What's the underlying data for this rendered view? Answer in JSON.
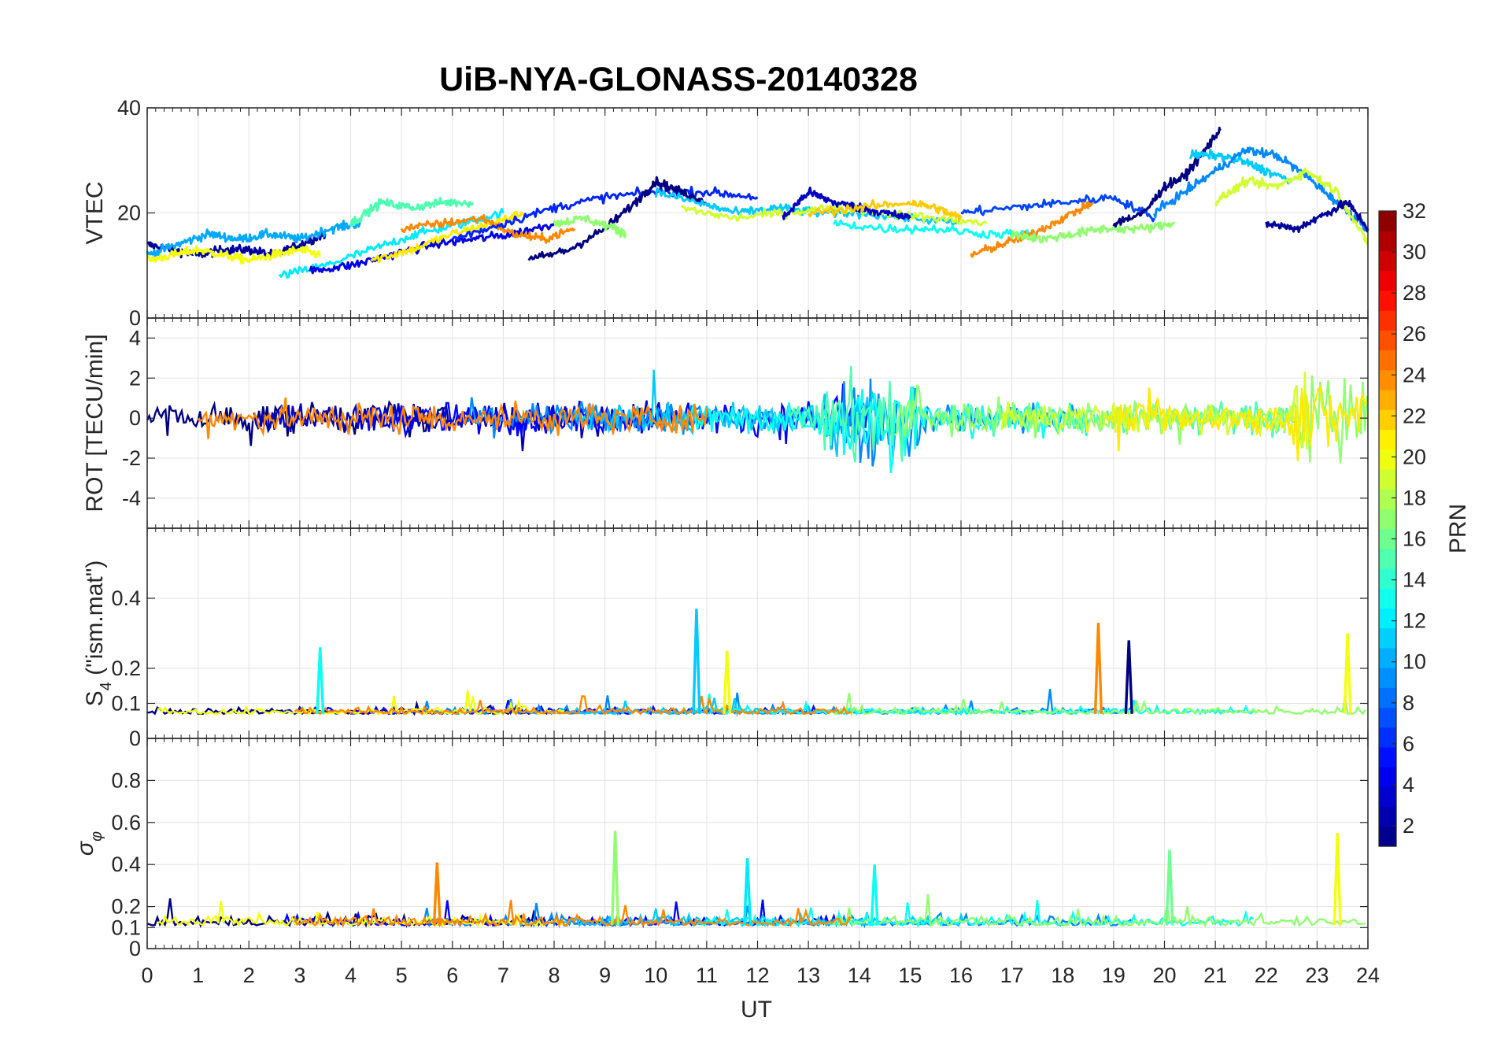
{
  "chart_data": {
    "type": "line",
    "title": "UiB-NYA-GLONASS-20140328",
    "xlabel": "UT",
    "xlim": [
      0,
      24
    ],
    "xticks": [
      "0",
      "1",
      "2",
      "3",
      "4",
      "5",
      "6",
      "7",
      "8",
      "9",
      "10",
      "11",
      "12",
      "13",
      "14",
      "15",
      "16",
      "17",
      "18",
      "19",
      "20",
      "21",
      "22",
      "23",
      "24"
    ],
    "grid": true,
    "colormap": "jet",
    "colorbar": {
      "label": "PRN",
      "range": [
        1,
        32
      ],
      "ticks": [
        "2",
        "4",
        "6",
        "8",
        "10",
        "12",
        "14",
        "16",
        "18",
        "20",
        "22",
        "24",
        "26",
        "28",
        "30",
        "32"
      ]
    },
    "panels": [
      {
        "ylabel": "VTEC",
        "ylim": [
          0,
          40
        ],
        "yticks": [
          "0",
          "20",
          "40"
        ],
        "series": [
          {
            "prn": 2,
            "x": [
              0.0,
              0.5,
              1.0,
              1.5,
              2.0,
              2.5,
              3.0,
              3.5
            ],
            "y": [
              14,
              13,
              12,
              13,
              13,
              12,
              14,
              16
            ]
          },
          {
            "prn": 10,
            "x": [
              0.0,
              0.6,
              1.2,
              1.8,
              2.4,
              3.0,
              3.6,
              4.2
            ],
            "y": [
              12,
              14,
              16,
              15,
              16,
              15,
              17,
              18
            ]
          },
          {
            "prn": 20,
            "x": [
              0.0,
              0.5,
              1.0,
              1.5,
              2.0,
              2.5,
              3.0,
              3.4
            ],
            "y": [
              11,
              12,
              13,
              12,
              11,
              12,
              13,
              12
            ]
          },
          {
            "prn": 12,
            "x": [
              2.6,
              3.5,
              4.4,
              5.3,
              6.2,
              7.0
            ],
            "y": [
              8,
              10,
              13,
              16,
              18,
              20
            ]
          },
          {
            "prn": 4,
            "x": [
              3.2,
              4.0,
              4.8,
              5.6,
              6.4,
              7.2,
              8.0
            ],
            "y": [
              9,
              10,
              12,
              14,
              15,
              16,
              18
            ]
          },
          {
            "prn": 15,
            "x": [
              4.0,
              4.6,
              5.2,
              5.8,
              6.4
            ],
            "y": [
              18,
              22,
              21,
              22,
              22
            ]
          },
          {
            "prn": 21,
            "x": [
              4.4,
              5.2,
              6.0,
              6.8,
              7.4
            ],
            "y": [
              11,
              13,
              16,
              18,
              20
            ]
          },
          {
            "prn": 24,
            "x": [
              5.0,
              5.8,
              6.6,
              7.2,
              7.8,
              8.4
            ],
            "y": [
              17,
              18,
              19,
              16,
              15,
              17
            ]
          },
          {
            "prn": 6,
            "x": [
              6.0,
              7.0,
              8.0,
              9.0,
              10.0,
              11.0,
              12.0
            ],
            "y": [
              15,
              18,
              21,
              23,
              24,
              24,
              23
            ]
          },
          {
            "prn": 1,
            "x": [
              7.5,
              8.3,
              9.0,
              9.6,
              10.0,
              10.5,
              11.0
            ],
            "y": [
              11,
              13,
              17,
              22,
              26,
              24,
              22
            ]
          },
          {
            "prn": 17,
            "x": [
              8.0,
              8.6,
              9.2,
              9.4
            ],
            "y": [
              18,
              19,
              17,
              16
            ]
          },
          {
            "prn": 11,
            "x": [
              10.0,
              10.8,
              11.6,
              12.4,
              13.2,
              14.0,
              15.0,
              16.0
            ],
            "y": [
              24,
              22,
              20,
              21,
              20,
              20,
              19,
              18
            ]
          },
          {
            "prn": 19,
            "x": [
              10.5,
              11.5,
              12.5,
              13.5,
              14.5,
              15.5,
              16.5
            ],
            "y": [
              21,
              19,
              20,
              21,
              20,
              19,
              18
            ]
          },
          {
            "prn": 3,
            "x": [
              12.5,
              13.0,
              13.5,
              14.0,
              14.5,
              15.0
            ],
            "y": [
              19,
              24,
              22,
              21,
              20,
              19
            ]
          },
          {
            "prn": 22,
            "x": [
              13.0,
              14.0,
              15.0,
              15.5,
              16.0
            ],
            "y": [
              20,
              21,
              22,
              21,
              19
            ]
          },
          {
            "prn": 13,
            "x": [
              13.5,
              14.5,
              15.5,
              16.5,
              17.5
            ],
            "y": [
              18,
              17,
              17,
              16,
              16
            ]
          },
          {
            "prn": 24,
            "x": [
              16.2,
              16.8,
              17.4,
              18.0,
              18.6
            ],
            "y": [
              12,
              14,
              16,
              19,
              22
            ]
          },
          {
            "prn": 7,
            "x": [
              16.0,
              17.0,
              18.0,
              19.0,
              19.8
            ],
            "y": [
              20,
              21,
              22,
              23,
              19
            ]
          },
          {
            "prn": 17,
            "x": [
              17.0,
              17.6,
              18.2,
              18.8,
              19.6,
              20.2
            ],
            "y": [
              16,
              15,
              16,
              17,
              17,
              18
            ]
          },
          {
            "prn": 1,
            "x": [
              19.0,
              19.6,
              20.0,
              20.4,
              20.8,
              21.1
            ],
            "y": [
              18,
              20,
              25,
              27,
              32,
              36
            ]
          },
          {
            "prn": 11,
            "x": [
              20.5,
              21.0,
              21.5,
              22.0,
              22.5
            ],
            "y": [
              31,
              31,
              30,
              28,
              26
            ]
          },
          {
            "prn": 9,
            "x": [
              19.8,
              20.4,
              21.0,
              21.6,
              22.2,
              22.8,
              23.4,
              24.0
            ],
            "y": [
              20,
              24,
              28,
              32,
              31,
              27,
              22,
              17
            ]
          },
          {
            "prn": 19,
            "x": [
              21.0,
              21.6,
              22.2,
              22.8,
              23.4,
              24.0
            ],
            "y": [
              22,
              26,
              25,
              28,
              24,
              14
            ]
          },
          {
            "prn": 2,
            "x": [
              22.0,
              22.6,
              23.2,
              23.6,
              24.0
            ],
            "y": [
              18,
              17,
              20,
              22,
              17
            ]
          }
        ]
      },
      {
        "ylabel": "ROT [TECU/min]",
        "ylim": [
          -5.5,
          5
        ],
        "yticks": [
          "-4",
          "-2",
          "0",
          "2",
          "4"
        ]
      },
      {
        "ylabel": "S4 (\"ism.mat\")",
        "ylim": [
          0,
          0.6
        ],
        "yticks": [
          "0",
          "0.1",
          "0.2",
          "0.4"
        ],
        "spikes": [
          {
            "prn": 13,
            "x": 3.4,
            "y": 0.26
          },
          {
            "prn": 11,
            "x": 10.8,
            "y": 0.37
          },
          {
            "prn": 20,
            "x": 11.4,
            "y": 0.25
          },
          {
            "prn": 24,
            "x": 18.7,
            "y": 0.33
          },
          {
            "prn": 1,
            "x": 19.3,
            "y": 0.28
          },
          {
            "prn": 20,
            "x": 23.6,
            "y": 0.3
          }
        ]
      },
      {
        "ylabel": "σφ",
        "ylim": [
          0,
          1
        ],
        "yticks": [
          "0",
          "0.1",
          "0.2",
          "0.4",
          "0.6",
          "0.8"
        ],
        "spikes": [
          {
            "prn": 24,
            "x": 5.7,
            "y": 0.41
          },
          {
            "prn": 17,
            "x": 9.2,
            "y": 0.56
          },
          {
            "prn": 12,
            "x": 11.8,
            "y": 0.43
          },
          {
            "prn": 13,
            "x": 14.3,
            "y": 0.4
          },
          {
            "prn": 16,
            "x": 20.1,
            "y": 0.47
          },
          {
            "prn": 20,
            "x": 23.4,
            "y": 0.55
          }
        ]
      }
    ]
  }
}
